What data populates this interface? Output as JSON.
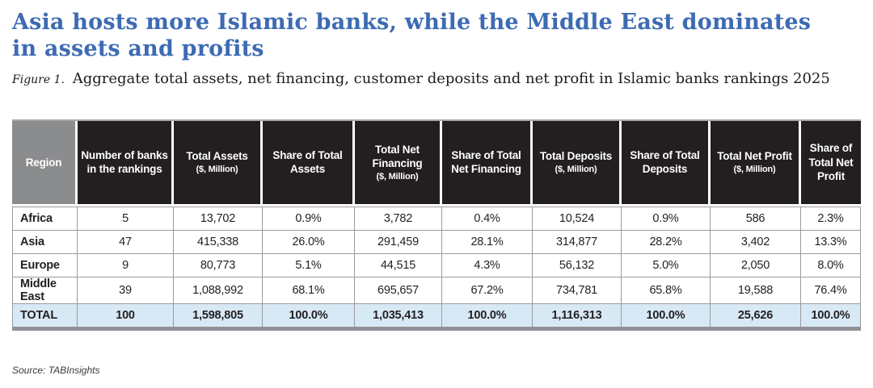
{
  "page": {
    "title_line1": "Asia hosts more Islamic banks, while the Middle East dominates",
    "title_line2": "in assets and profits",
    "figure_label": "Figure 1.",
    "figure_caption": "Aggregate total assets, net financing, customer deposits and net profit in Islamic banks rankings 2025",
    "source": "Source: TABInsights"
  },
  "colors": {
    "title_blue": "#3d6bb3",
    "header_bg": "#231f20",
    "region_header_bg": "#8b8c8e",
    "total_row_bg": "#d8e9f6",
    "grid_line": "#9b9b9b",
    "bottom_bar": "#8f9296"
  },
  "chart_data": {
    "type": "table",
    "title": "Aggregate total assets, net financing, customer deposits and net profit in Islamic banks rankings 2025",
    "columns": [
      {
        "label": "Region",
        "sub": ""
      },
      {
        "label": "Number of banks in the rankings",
        "sub": ""
      },
      {
        "label": "Total Assets",
        "sub": "($, Million)"
      },
      {
        "label": "Share of Total Assets",
        "sub": ""
      },
      {
        "label": "Total Net Financing",
        "sub": "($, Million)"
      },
      {
        "label": "Share of Total Net Financing",
        "sub": ""
      },
      {
        "label": "Total Deposits",
        "sub": "($, Million)"
      },
      {
        "label": "Share of Total Deposits",
        "sub": ""
      },
      {
        "label": "Total Net Profit",
        "sub": "($, Million)"
      },
      {
        "label": "Share of Total Net Profit",
        "sub": ""
      }
    ],
    "rows": [
      {
        "region": "Africa",
        "values": [
          "5",
          "13,702",
          "0.9%",
          "3,782",
          "0.4%",
          "10,524",
          "0.9%",
          "586",
          "2.3%"
        ]
      },
      {
        "region": "Asia",
        "values": [
          "47",
          "415,338",
          "26.0%",
          "291,459",
          "28.1%",
          "314,877",
          "28.2%",
          "3,402",
          "13.3%"
        ]
      },
      {
        "region": "Europe",
        "values": [
          "9",
          "80,773",
          "5.1%",
          "44,515",
          "4.3%",
          "56,132",
          "5.0%",
          "2,050",
          "8.0%"
        ]
      },
      {
        "region": "Middle East",
        "values": [
          "39",
          "1,088,992",
          "68.1%",
          "695,657",
          "67.2%",
          "734,781",
          "65.8%",
          "19,588",
          "76.4%"
        ]
      }
    ],
    "total_row": {
      "region": "TOTAL",
      "values": [
        "100",
        "1,598,805",
        "100.0%",
        "1,035,413",
        "100.0%",
        "1,116,313",
        "100.0%",
        "25,626",
        "100.0%"
      ]
    }
  }
}
